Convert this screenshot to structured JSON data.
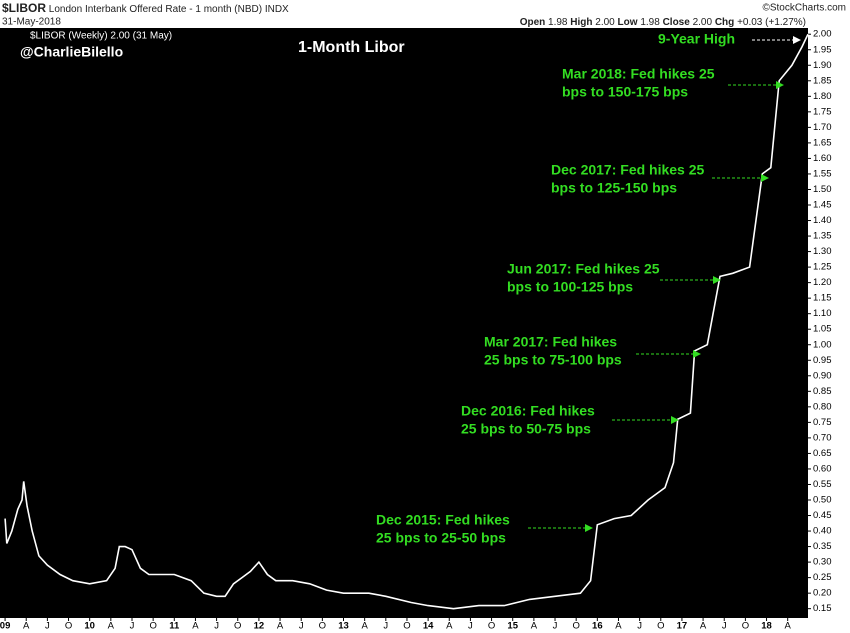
{
  "header": {
    "symbol": "$LIBOR",
    "description": "London Interbank Offered Rate - 1 month (NBD) INDX",
    "date": "31-May-2018",
    "source": "©StockCharts.com",
    "quote": [
      [
        "Open",
        "1.98"
      ],
      [
        "High",
        "2.00"
      ],
      [
        "Low",
        "1.98"
      ],
      [
        "Close",
        "2.00"
      ],
      [
        "Chg",
        "+0.03 (+1.27%)"
      ]
    ]
  },
  "chart_data": {
    "type": "line",
    "title": "1-Month Libor",
    "subtitle": "@CharlieBilello",
    "legend": "$LIBOR (Weekly) 2.00 (31 May)",
    "series": [
      {
        "name": "$LIBOR",
        "color": "#ffffff",
        "x": [
          2009.0,
          2009.02,
          2009.08,
          2009.15,
          2009.2,
          2009.22,
          2009.26,
          2009.32,
          2009.4,
          2009.5,
          2009.65,
          2009.8,
          2010.0,
          2010.2,
          2010.3,
          2010.35,
          2010.42,
          2010.5,
          2010.6,
          2010.7,
          2010.9,
          2011.0,
          2011.2,
          2011.35,
          2011.5,
          2011.6,
          2011.7,
          2011.8,
          2011.9,
          2012.0,
          2012.1,
          2012.2,
          2012.4,
          2012.6,
          2012.8,
          2013.0,
          2013.3,
          2013.5,
          2013.8,
          2014.0,
          2014.3,
          2014.6,
          2014.9,
          2015.2,
          2015.5,
          2015.8,
          2015.92,
          2016.0,
          2016.2,
          2016.4,
          2016.6,
          2016.8,
          2016.9,
          2016.95,
          2017.1,
          2017.15,
          2017.3,
          2017.45,
          2017.6,
          2017.8,
          2017.95,
          2018.05,
          2018.15,
          2018.3,
          2018.42,
          2018.49
        ],
        "values": [
          0.44,
          0.36,
          0.4,
          0.47,
          0.5,
          0.56,
          0.48,
          0.4,
          0.32,
          0.29,
          0.26,
          0.24,
          0.23,
          0.24,
          0.28,
          0.35,
          0.35,
          0.34,
          0.28,
          0.26,
          0.26,
          0.26,
          0.24,
          0.2,
          0.19,
          0.19,
          0.23,
          0.25,
          0.27,
          0.3,
          0.26,
          0.24,
          0.24,
          0.23,
          0.21,
          0.2,
          0.2,
          0.19,
          0.17,
          0.16,
          0.15,
          0.16,
          0.16,
          0.18,
          0.19,
          0.2,
          0.24,
          0.42,
          0.44,
          0.45,
          0.5,
          0.54,
          0.62,
          0.76,
          0.78,
          0.98,
          1.0,
          1.22,
          1.23,
          1.25,
          1.55,
          1.57,
          1.85,
          1.9,
          1.96,
          2.0
        ]
      }
    ],
    "xlim": [
      2008.94,
      2018.49
    ],
    "xticks": [
      {
        "value": 2009,
        "label": "09"
      },
      {
        "value": 2009.25,
        "label": "A"
      },
      {
        "value": 2009.5,
        "label": "J"
      },
      {
        "value": 2009.75,
        "label": "O"
      },
      {
        "value": 2010,
        "label": "10"
      },
      {
        "value": 2010.25,
        "label": "A"
      },
      {
        "value": 2010.5,
        "label": "J"
      },
      {
        "value": 2010.75,
        "label": "O"
      },
      {
        "value": 2011,
        "label": "11"
      },
      {
        "value": 2011.25,
        "label": "A"
      },
      {
        "value": 2011.5,
        "label": "J"
      },
      {
        "value": 2011.75,
        "label": "O"
      },
      {
        "value": 2012,
        "label": "12"
      },
      {
        "value": 2012.25,
        "label": "A"
      },
      {
        "value": 2012.5,
        "label": "J"
      },
      {
        "value": 2012.75,
        "label": "O"
      },
      {
        "value": 2013,
        "label": "13"
      },
      {
        "value": 2013.25,
        "label": "A"
      },
      {
        "value": 2013.5,
        "label": "J"
      },
      {
        "value": 2013.75,
        "label": "O"
      },
      {
        "value": 2014,
        "label": "14"
      },
      {
        "value": 2014.25,
        "label": "A"
      },
      {
        "value": 2014.5,
        "label": "J"
      },
      {
        "value": 2014.75,
        "label": "O"
      },
      {
        "value": 2015,
        "label": "15"
      },
      {
        "value": 2015.25,
        "label": "A"
      },
      {
        "value": 2015.5,
        "label": "J"
      },
      {
        "value": 2015.75,
        "label": "O"
      },
      {
        "value": 2016,
        "label": "16"
      },
      {
        "value": 2016.25,
        "label": "A"
      },
      {
        "value": 2016.5,
        "label": "J"
      },
      {
        "value": 2016.75,
        "label": "O"
      },
      {
        "value": 2017,
        "label": "17"
      },
      {
        "value": 2017.25,
        "label": "A"
      },
      {
        "value": 2017.5,
        "label": "J"
      },
      {
        "value": 2017.75,
        "label": "O"
      },
      {
        "value": 2018,
        "label": "18"
      },
      {
        "value": 2018.25,
        "label": "A"
      }
    ],
    "ylim": [
      0.12,
      2.02
    ],
    "yticks": [
      0.15,
      {
        "value": 0.2,
        "label": "0.20"
      },
      0.25,
      {
        "value": 0.3,
        "label": "0.30"
      },
      0.35,
      {
        "value": 0.4,
        "label": "0.40"
      },
      0.45,
      {
        "value": 0.5,
        "label": "0.50"
      },
      0.55,
      {
        "value": 0.6,
        "label": "0.60"
      },
      0.65,
      {
        "value": 0.7,
        "label": "0.70"
      },
      0.75,
      {
        "value": 0.8,
        "label": "0.80"
      },
      0.85,
      {
        "value": 0.9,
        "label": "0.90"
      },
      0.95,
      {
        "value": 1,
        "label": "1.00"
      },
      1.05,
      {
        "value": 1.1,
        "label": "1.10"
      },
      1.15,
      {
        "value": 1.2,
        "label": "1.20"
      },
      1.25,
      {
        "value": 1.3,
        "label": "1.30"
      },
      1.35,
      {
        "value": 1.4,
        "label": "1.40"
      },
      1.45,
      {
        "value": 1.5,
        "label": "1.50"
      },
      1.55,
      {
        "value": 1.6,
        "label": "1.60"
      },
      1.65,
      {
        "value": 1.7,
        "label": "1.70"
      },
      1.75,
      {
        "value": 1.8,
        "label": "1.80"
      },
      1.85,
      {
        "value": 1.9,
        "label": "1.90"
      },
      1.95,
      {
        "value": 2,
        "label": "2.00"
      }
    ],
    "annotations": [
      [
        "9-Year High"
      ],
      [
        "Mar 2018: Fed hikes 25",
        "bps to 150-175 bps"
      ],
      [
        "Dec 2017: Fed hikes 25",
        "bps to 125-150 bps"
      ],
      [
        "Jun 2017: Fed hikes 25",
        "bps to 100-125 bps"
      ],
      [
        "Mar 2017: Fed hikes",
        "25 bps to 75-100 bps"
      ],
      [
        "Dec 2016: Fed hikes",
        "25 bps to 50-75 bps"
      ],
      [
        "Dec 2015: Fed hikes",
        "25 bps to 25-50 bps"
      ]
    ]
  }
}
